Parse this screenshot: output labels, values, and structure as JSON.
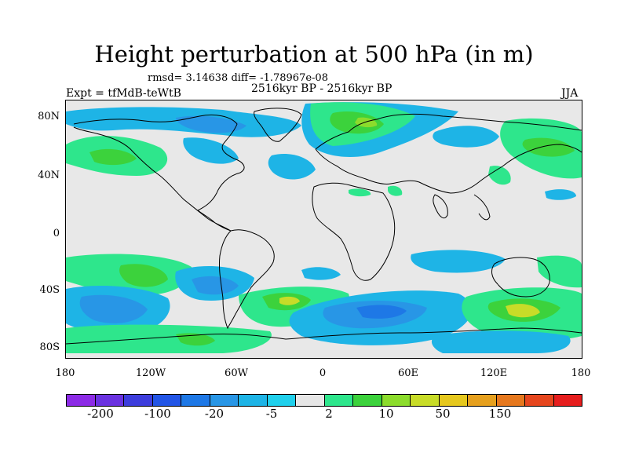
{
  "title": "Height perturbation at 500 hPa (in m)",
  "stats": "rmsd= 3.14638 diff= -1.78967e-08",
  "period": "2516kyr BP - 2516kyr BP",
  "experiment": "Expt = tfMdB-teWtB",
  "season": "JJA",
  "map": {
    "lat_ticks": [
      "80N",
      "40N",
      "0",
      "40S",
      "80S"
    ],
    "lon_ticks": [
      "180",
      "120W",
      "60W",
      "0",
      "60E",
      "120E",
      "180"
    ]
  },
  "colorbar": {
    "colors": [
      "#8c2be6",
      "#6a32e0",
      "#3d3ddc",
      "#2255e6",
      "#1e78e6",
      "#2896e6",
      "#1eb4e6",
      "#20d0ec",
      "#e6e6e6",
      "#2ee68c",
      "#3cd23c",
      "#8cdc2c",
      "#c8dc28",
      "#e6c81e",
      "#e6a01e",
      "#e6781e",
      "#e6461e",
      "#e61e1e"
    ],
    "labels": [
      "-200",
      "-100",
      "-20",
      "-5",
      "2",
      "10",
      "50",
      "150"
    ]
  },
  "colors": {
    "neutral": "#e8e8e8",
    "light_blue": "#1eb4e6",
    "mid_blue": "#2896e6",
    "blue": "#1e78e6",
    "light_green": "#2ee68c",
    "green": "#3cd23c",
    "yellow_green": "#c8dc28"
  }
}
